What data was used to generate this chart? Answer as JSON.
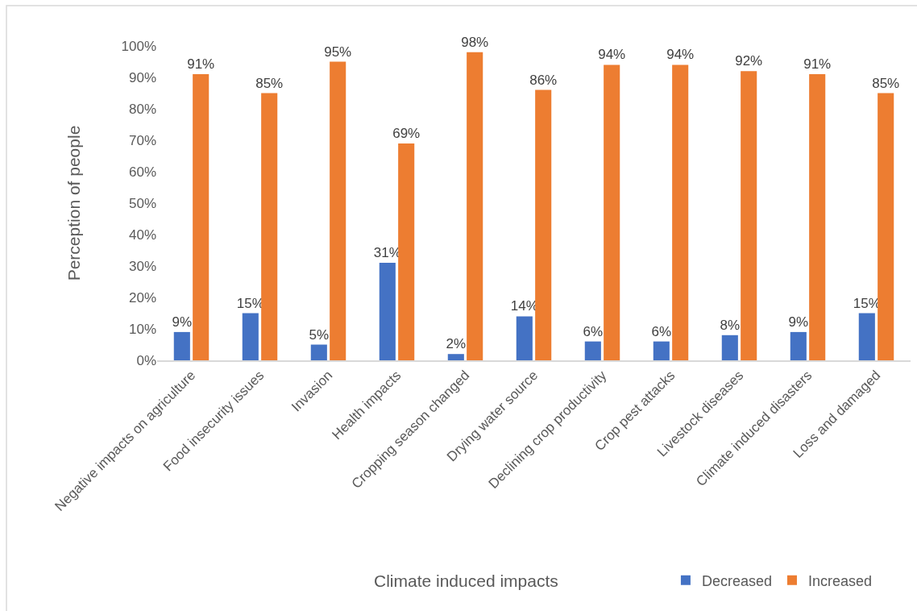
{
  "chart_data": {
    "type": "bar",
    "xlabel": "Climate induced impacts",
    "ylabel": "Perception of people",
    "categories": [
      "Negative impacts on agriculture",
      "Food insecurity issues",
      "Invasion",
      "Health impacts",
      "Cropping season changed",
      "Drying water source",
      "Declining crop productivity",
      "Crop pest attacks",
      "Livestock diseases",
      "Climate induced disasters",
      "Loss and damaged"
    ],
    "series": [
      {
        "name": "Decreased",
        "color": "#4472c4",
        "values": [
          9,
          15,
          5,
          31,
          2,
          14,
          6,
          6,
          8,
          9,
          15
        ],
        "value_labels": [
          "9%",
          "15%",
          "5%",
          "31%",
          "2%",
          "14%",
          "6%",
          "6%",
          "8%",
          "9%",
          "15%"
        ]
      },
      {
        "name": "Increased",
        "color": "#ed7d31",
        "values": [
          91,
          85,
          95,
          69,
          98,
          86,
          94,
          94,
          92,
          91,
          85
        ],
        "value_labels": [
          "91%",
          "85%",
          "95%",
          "69%",
          "98%",
          "86%",
          "94%",
          "94%",
          "92%",
          "91%",
          "85%"
        ]
      }
    ],
    "ylim": [
      0,
      100
    ],
    "yticks": [
      {
        "value": 0,
        "label": "0%"
      },
      {
        "value": 10,
        "label": "10%"
      },
      {
        "value": 20,
        "label": "20%"
      },
      {
        "value": 30,
        "label": "30%"
      },
      {
        "value": 40,
        "label": "40%"
      },
      {
        "value": 50,
        "label": "50%"
      },
      {
        "value": 60,
        "label": "60%"
      },
      {
        "value": 70,
        "label": "70%"
      },
      {
        "value": 80,
        "label": "80%"
      },
      {
        "value": 90,
        "label": "90%"
      },
      {
        "value": 100,
        "label": "100%"
      }
    ],
    "legend": "bottom right"
  }
}
